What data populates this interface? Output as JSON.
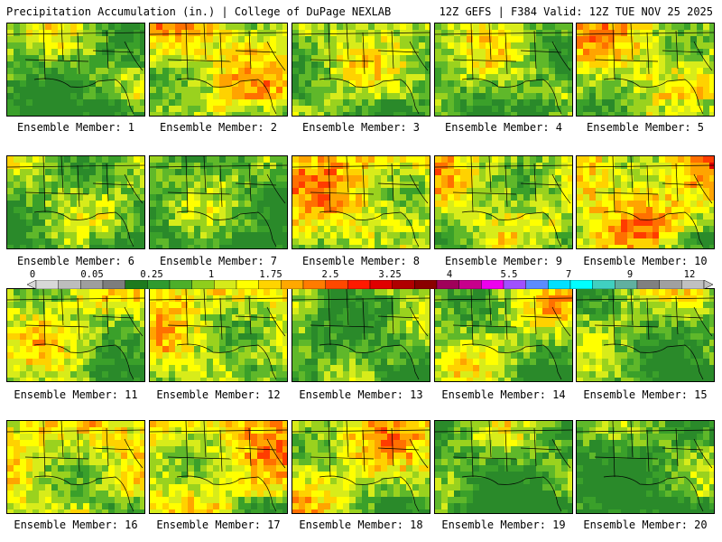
{
  "header": {
    "left": "Precipitation Accumulation (in.) | College of DuPage NEXLAB",
    "right": "12Z GEFS | F384 Valid: 12Z TUE NOV 25 2025"
  },
  "colorbar": {
    "tick_labels": [
      "0",
      "0.05",
      "0.25",
      "1",
      "1.75",
      "2.5",
      "3.25",
      "4",
      "5.5",
      "7",
      "9",
      "12"
    ],
    "colors": [
      "#d8d8d8",
      "#bdbdbd",
      "#9e9e9e",
      "#7d7d7d",
      "#1e7a1e",
      "#2f9a2f",
      "#4caf2a",
      "#8fce1c",
      "#d6ea1a",
      "#ffff00",
      "#ffd400",
      "#ffa800",
      "#ff7c00",
      "#ff4800",
      "#ff1a00",
      "#e00000",
      "#b00000",
      "#8a0000",
      "#a0005a",
      "#c8008c",
      "#ee00ee",
      "#a050ff",
      "#5c8cff",
      "#00e0ff",
      "#00ffff",
      "#40d0c0",
      "#60b0a0",
      "#808080",
      "#a0a0a0",
      "#c0c0c0"
    ]
  },
  "panels": [
    {
      "label": "Ensemble Member: 1"
    },
    {
      "label": "Ensemble Member: 2"
    },
    {
      "label": "Ensemble Member: 3"
    },
    {
      "label": "Ensemble Member: 4"
    },
    {
      "label": "Ensemble Member: 5"
    },
    {
      "label": "Ensemble Member: 6"
    },
    {
      "label": "Ensemble Member: 7"
    },
    {
      "label": "Ensemble Member: 8"
    },
    {
      "label": "Ensemble Member: 9"
    },
    {
      "label": "Ensemble Member: 10"
    },
    {
      "label": "Ensemble Member: 11"
    },
    {
      "label": "Ensemble Member: 12"
    },
    {
      "label": "Ensemble Member: 13"
    },
    {
      "label": "Ensemble Member: 14"
    },
    {
      "label": "Ensemble Member: 15"
    },
    {
      "label": "Ensemble Member: 16"
    },
    {
      "label": "Ensemble Member: 17"
    },
    {
      "label": "Ensemble Member: 18"
    },
    {
      "label": "Ensemble Member: 19"
    },
    {
      "label": "Ensemble Member: 20"
    }
  ]
}
